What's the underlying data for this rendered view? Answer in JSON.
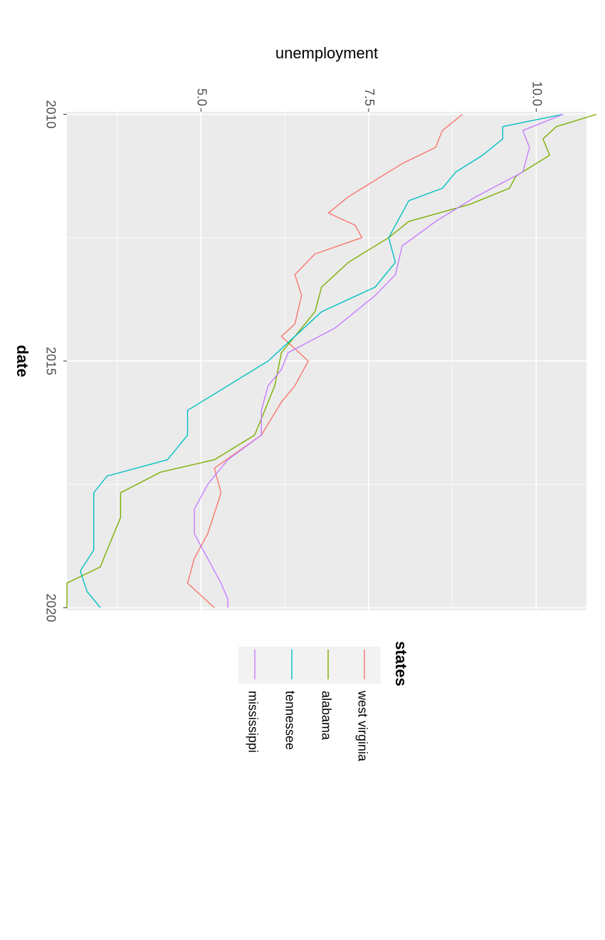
{
  "chart_data": {
    "type": "line",
    "orientation": "rotated 90 degrees clockwise",
    "xlabel": "date",
    "ylabel": "unemployment",
    "xlim": [
      2009.95,
      2020.05
    ],
    "ylim": [
      3.0,
      10.75
    ],
    "x_ticks": [
      2010,
      2015,
      2020
    ],
    "y_ticks": [
      5.0,
      7.5,
      10.0
    ],
    "y_tick_labels": [
      "5.0",
      "7.5",
      "10.0"
    ],
    "grid": true,
    "legend_title": "states",
    "legend_position": "right",
    "series": [
      {
        "name": "west virginia",
        "color": "#F8766D",
        "points": [
          [
            2010.0,
            8.9
          ],
          [
            2010.33,
            8.6
          ],
          [
            2010.67,
            8.5
          ],
          [
            2011.0,
            8.0
          ],
          [
            2011.67,
            7.2
          ],
          [
            2012.0,
            6.9
          ],
          [
            2012.25,
            7.3
          ],
          [
            2012.5,
            7.4
          ],
          [
            2012.83,
            6.7
          ],
          [
            2013.25,
            6.4
          ],
          [
            2013.67,
            6.5
          ],
          [
            2014.25,
            6.4
          ],
          [
            2014.5,
            6.2
          ],
          [
            2015.0,
            6.6
          ],
          [
            2015.5,
            6.4
          ],
          [
            2015.83,
            6.2
          ],
          [
            2016.5,
            5.9
          ],
          [
            2017.17,
            5.2
          ],
          [
            2017.67,
            5.3
          ],
          [
            2018.5,
            5.1
          ],
          [
            2019.0,
            4.9
          ],
          [
            2019.5,
            4.8
          ],
          [
            2020.0,
            5.2
          ]
        ]
      },
      {
        "name": "alabama",
        "color": "#7CAE00",
        "points": [
          [
            2010.0,
            10.9
          ],
          [
            2010.25,
            10.3
          ],
          [
            2010.5,
            10.1
          ],
          [
            2010.83,
            10.2
          ],
          [
            2011.25,
            9.7
          ],
          [
            2011.5,
            9.6
          ],
          [
            2011.83,
            9.0
          ],
          [
            2012.17,
            8.1
          ],
          [
            2012.5,
            7.8
          ],
          [
            2013.0,
            7.2
          ],
          [
            2013.5,
            6.8
          ],
          [
            2014.0,
            6.7
          ],
          [
            2014.5,
            6.4
          ],
          [
            2014.83,
            6.2
          ],
          [
            2015.5,
            6.1
          ],
          [
            2016.17,
            5.9
          ],
          [
            2016.5,
            5.8
          ],
          [
            2017.0,
            5.2
          ],
          [
            2017.25,
            4.4
          ],
          [
            2017.67,
            3.8
          ],
          [
            2018.17,
            3.8
          ],
          [
            2018.83,
            3.6
          ],
          [
            2019.17,
            3.5
          ],
          [
            2019.5,
            3.0
          ],
          [
            2020.0,
            3.0
          ]
        ]
      },
      {
        "name": "tennessee",
        "color": "#00BFC4",
        "points": [
          [
            2010.0,
            10.4
          ],
          [
            2010.25,
            9.5
          ],
          [
            2010.5,
            9.5
          ],
          [
            2010.83,
            9.2
          ],
          [
            2011.17,
            8.8
          ],
          [
            2011.5,
            8.6
          ],
          [
            2011.75,
            8.1
          ],
          [
            2012.0,
            8.0
          ],
          [
            2012.5,
            7.8
          ],
          [
            2013.0,
            7.9
          ],
          [
            2013.5,
            7.6
          ],
          [
            2014.0,
            6.8
          ],
          [
            2014.5,
            6.4
          ],
          [
            2015.0,
            6.0
          ],
          [
            2015.5,
            5.4
          ],
          [
            2016.0,
            4.8
          ],
          [
            2016.5,
            4.8
          ],
          [
            2017.0,
            4.5
          ],
          [
            2017.33,
            3.6
          ],
          [
            2017.67,
            3.4
          ],
          [
            2018.25,
            3.4
          ],
          [
            2018.83,
            3.4
          ],
          [
            2019.25,
            3.2
          ],
          [
            2019.67,
            3.3
          ],
          [
            2020.0,
            3.5
          ]
        ]
      },
      {
        "name": "mississippi",
        "color": "#C77CFF",
        "points": [
          [
            2010.0,
            10.4
          ],
          [
            2010.33,
            9.8
          ],
          [
            2010.67,
            9.9
          ],
          [
            2011.17,
            9.8
          ],
          [
            2011.67,
            9.1
          ],
          [
            2012.17,
            8.5
          ],
          [
            2012.67,
            8.0
          ],
          [
            2013.25,
            7.9
          ],
          [
            2013.67,
            7.6
          ],
          [
            2014.33,
            7.0
          ],
          [
            2014.83,
            6.3
          ],
          [
            2015.17,
            6.2
          ],
          [
            2015.5,
            6.0
          ],
          [
            2016.0,
            5.9
          ],
          [
            2016.5,
            5.9
          ],
          [
            2017.0,
            5.4
          ],
          [
            2017.5,
            5.1
          ],
          [
            2018.0,
            4.9
          ],
          [
            2018.5,
            4.9
          ],
          [
            2019.0,
            5.1
          ],
          [
            2019.5,
            5.3
          ],
          [
            2019.83,
            5.4
          ],
          [
            2020.0,
            5.4
          ]
        ]
      }
    ]
  }
}
